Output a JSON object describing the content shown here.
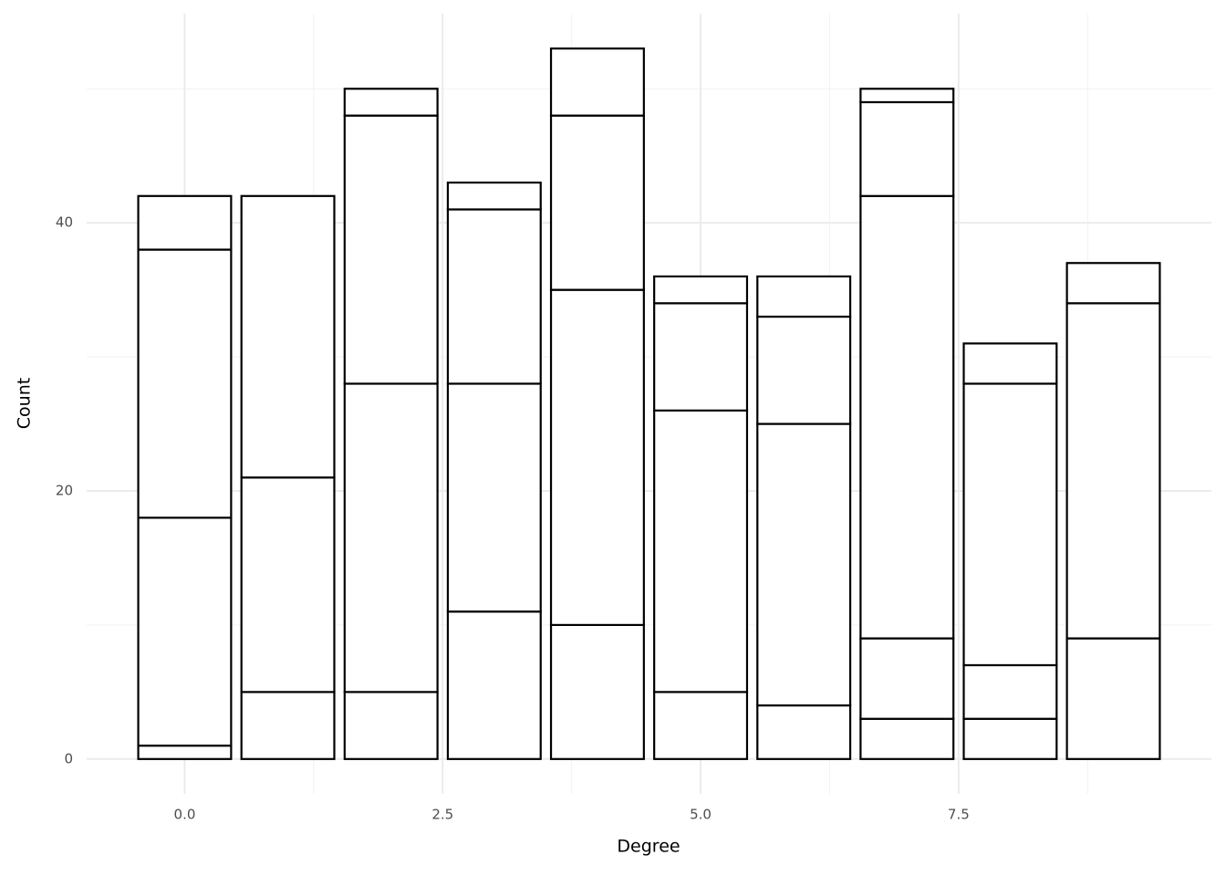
{
  "chart_data": {
    "type": "stacked_bar",
    "x_label": "Degree",
    "y_label": "Count",
    "x": [
      0,
      1,
      2,
      3,
      4,
      5,
      6,
      7,
      8,
      9
    ],
    "series": [
      {
        "values": [
          1,
          5,
          5,
          11,
          10,
          5,
          4,
          3,
          3,
          9
        ]
      },
      {
        "values": [
          17,
          16,
          23,
          17,
          25,
          21,
          21,
          6,
          4,
          25
        ]
      },
      {
        "values": [
          20,
          21,
          20,
          13,
          13,
          8,
          8,
          33,
          21,
          3
        ]
      },
      {
        "values": [
          4,
          null,
          2,
          2,
          5,
          2,
          3,
          7,
          3,
          null
        ]
      },
      {
        "values": [
          null,
          null,
          null,
          null,
          null,
          null,
          null,
          1,
          null,
          null
        ]
      }
    ],
    "color": "#ffffff",
    "edge_color": "#000000",
    "xlim": [
      -0.95,
      9.95
    ],
    "xticks": [
      {
        "value": 0,
        "label": "0.0"
      },
      2.5,
      {
        "value": 5,
        "label": "5.0"
      },
      7.5
    ],
    "ylim": [
      -2.6,
      55.6
    ],
    "yticks": [
      0,
      20,
      40
    ],
    "grid": true
  }
}
